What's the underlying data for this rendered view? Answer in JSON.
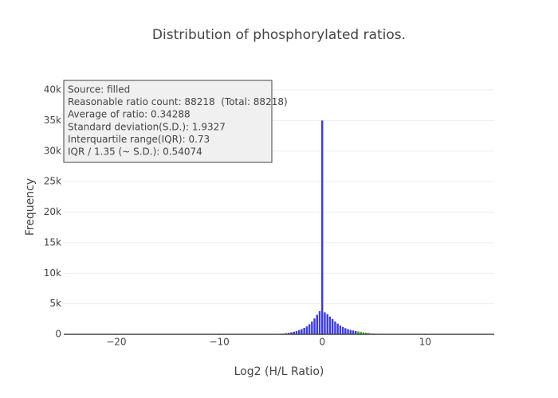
{
  "chart_data": {
    "type": "histogram",
    "title": "Distribution of phosphorylated ratios.",
    "x_label": "Log2 (H/L Ratio)",
    "y_label": "Frequency",
    "bins": [
      -5.125,
      -4.875,
      -4.625,
      -4.375,
      -4.125,
      -3.875,
      -3.625,
      -3.375,
      -3.125,
      -2.875,
      -2.625,
      -2.375,
      -2.125,
      -1.875,
      -1.625,
      -1.375,
      -1.125,
      -0.875,
      -0.625,
      -0.375,
      -0.125,
      0.125,
      0.375,
      0.625,
      0.875,
      1.125,
      1.375,
      1.625,
      1.875,
      2.125,
      2.375,
      2.625,
      2.875,
      3.125,
      3.375,
      3.625,
      3.875,
      4.125,
      4.375,
      4.625,
      4.875,
      5.125,
      5.375,
      5.625,
      5.875,
      6.125
    ],
    "counts": [
      20,
      30,
      50,
      70,
      100,
      140,
      190,
      250,
      330,
      420,
      540,
      680,
      850,
      1050,
      1300,
      1650,
      2100,
      2600,
      3200,
      3800,
      35000,
      3600,
      3300,
      2900,
      2500,
      2100,
      1750,
      1450,
      1200,
      1000,
      850,
      720,
      620,
      530,
      450,
      380,
      320,
      260,
      210,
      160,
      120,
      90,
      60,
      40,
      25
    ],
    "colors": [
      "#ff9900",
      "#ff9900",
      "#2ca02c",
      "#2ca02c",
      "#2ca02c",
      "#2ca02c",
      "#3b3bdf",
      "#3b3bdf",
      "#3b3bdf",
      "#3b3bdf",
      "#3b3bdf",
      "#3b3bdf",
      "#3b3bdf",
      "#3b3bdf",
      "#3b3bdf",
      "#3b3bdf",
      "#3b3bdf",
      "#3b3bdf",
      "#3b3bdf",
      "#3b3bdf",
      "#3b3bdf",
      "#3b3bdf",
      "#3b3bdf",
      "#3b3bdf",
      "#3b3bdf",
      "#3b3bdf",
      "#3b3bdf",
      "#3b3bdf",
      "#3b3bdf",
      "#3b3bdf",
      "#3b3bdf",
      "#3b3bdf",
      "#3b3bdf",
      "#3b3bdf",
      "#2ca02c",
      "#2ca02c",
      "#2ca02c",
      "#2ca02c",
      "#2ca02c",
      "#2ca02c",
      "#2ca02c",
      "#2ca02c",
      "#ff9900",
      "#ff9900",
      "#ff9900"
    ],
    "xlim": [
      -25.1,
      16.7
    ],
    "ylim": [
      0,
      40000
    ],
    "xticks": [
      {
        "value": -20,
        "label": "−20"
      },
      {
        "value": -10,
        "label": "−10"
      },
      0,
      10
    ],
    "yticks": [
      0,
      {
        "value": 5000,
        "label": "5k"
      },
      {
        "value": 10000,
        "label": "10k"
      },
      {
        "value": 15000,
        "label": "15k"
      },
      {
        "value": 20000,
        "label": "20k"
      },
      {
        "value": 25000,
        "label": "25k"
      },
      {
        "value": 30000,
        "label": "30k"
      },
      {
        "value": 35000,
        "label": "35k"
      },
      {
        "value": 40000,
        "label": "40k"
      }
    ],
    "grid": true,
    "annotation": [
      "Source: filled",
      "Reasonable ratio count: 88218  (Total: 88218)",
      "Average of ratio: 0.34288",
      "Standard deviation(S.D.): 1.9327",
      "Interquartile range(IQR): 0.73",
      "IQR / 1.35 (~ S.D.): 0.54074"
    ]
  }
}
